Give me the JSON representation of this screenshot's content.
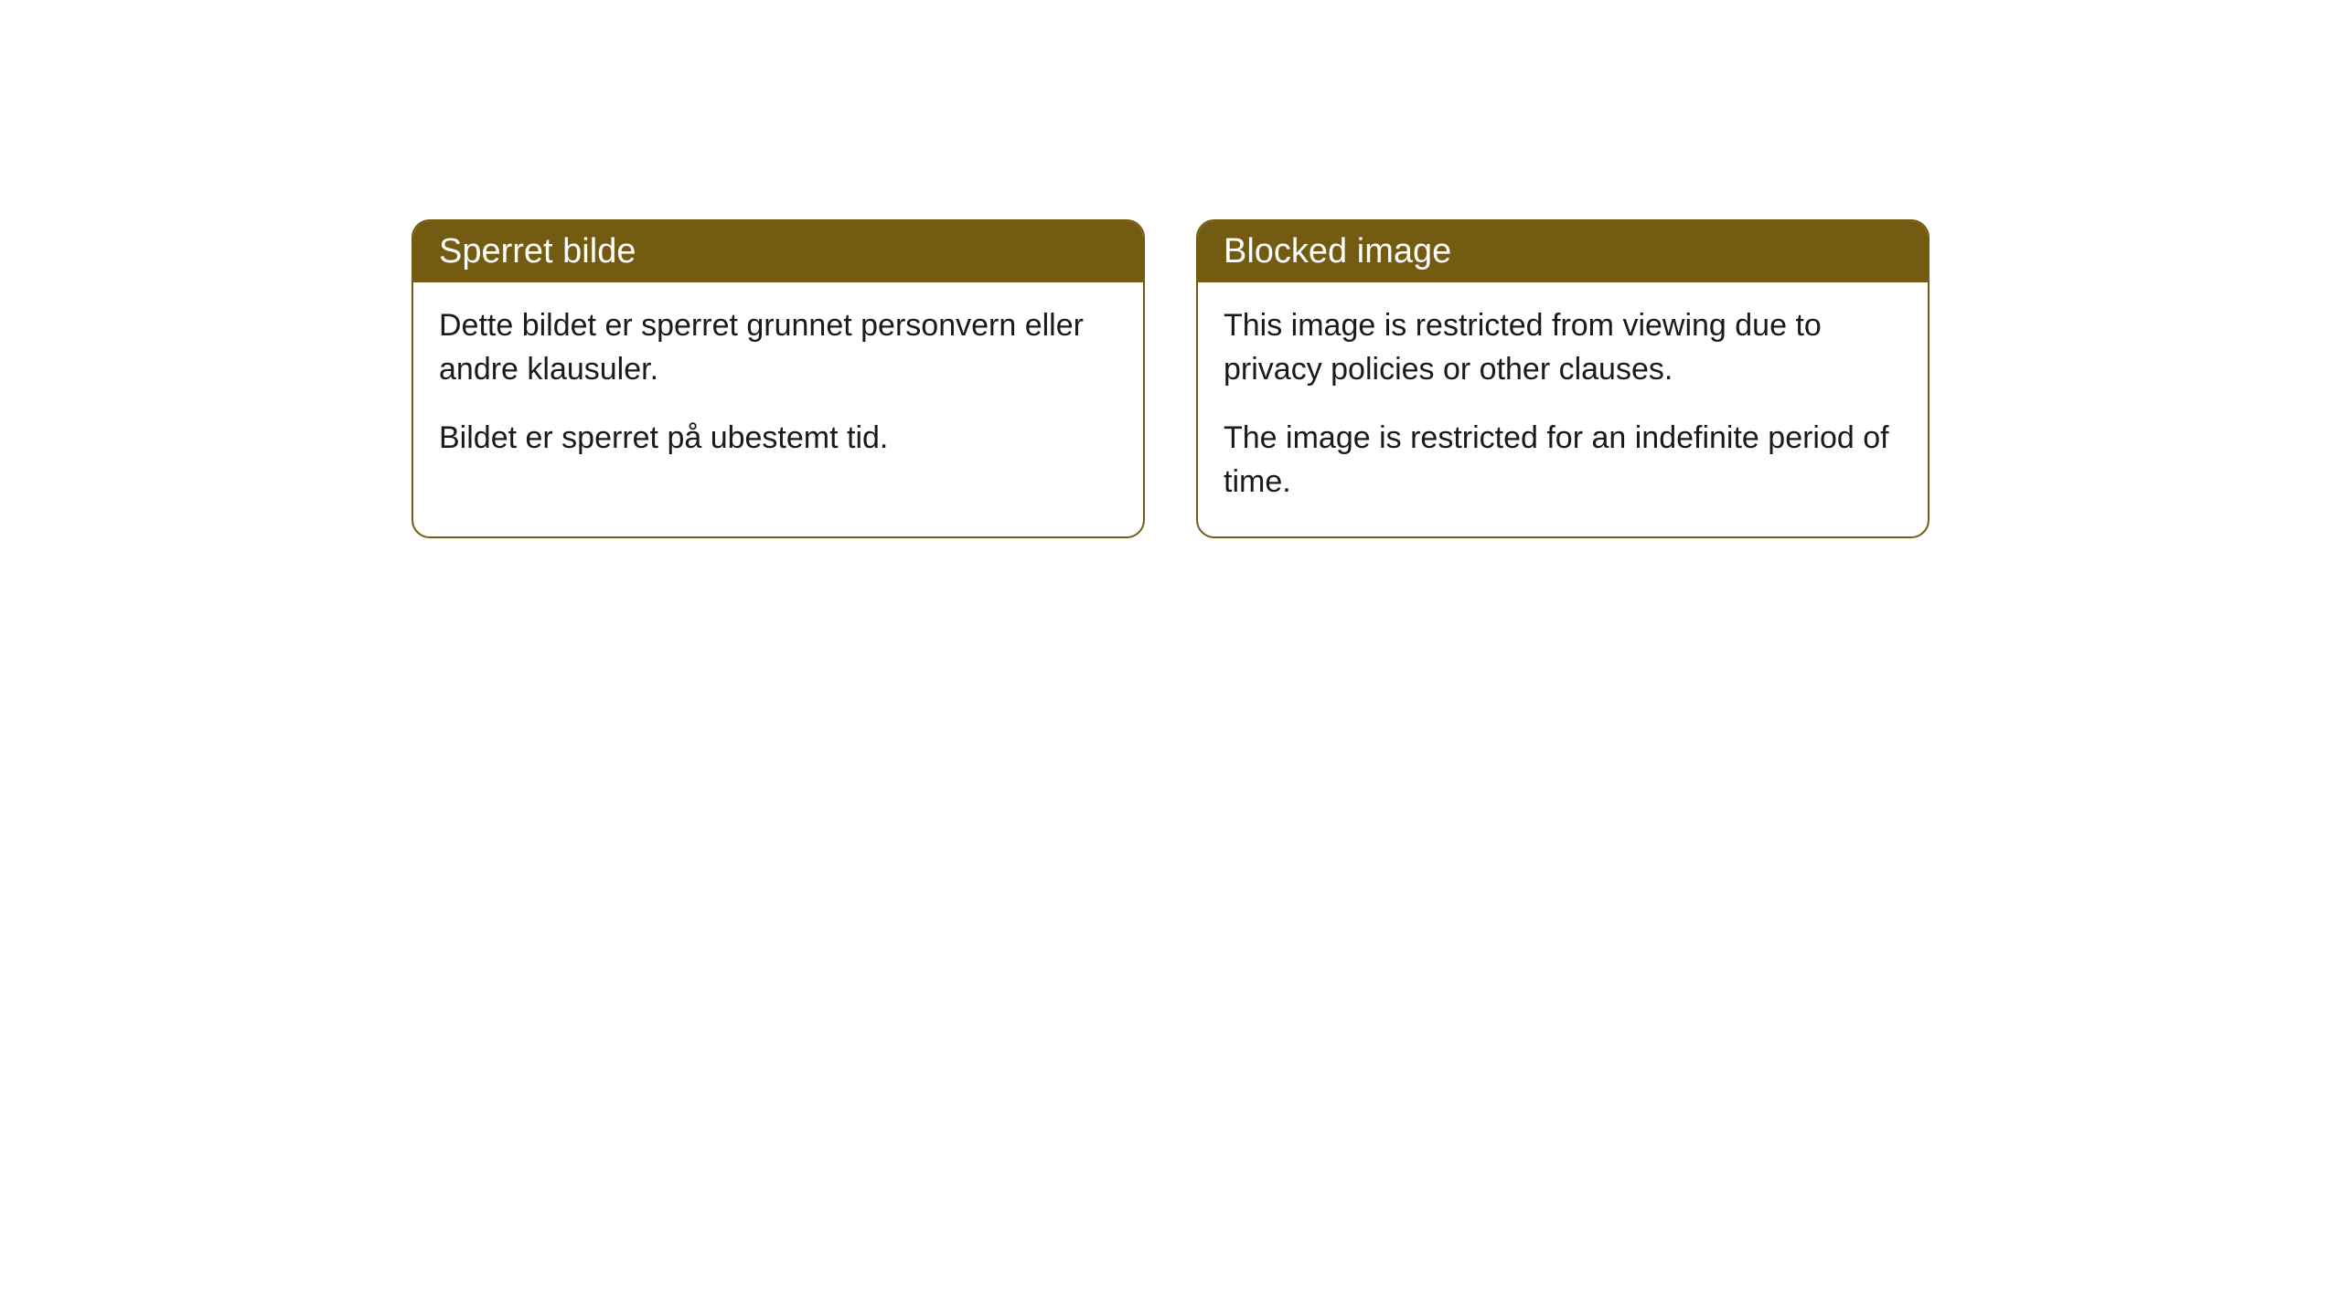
{
  "cards": [
    {
      "title": "Sperret bilde",
      "paragraph1": "Dette bildet er sperret grunnet personvern eller andre klausuler.",
      "paragraph2": "Bildet er sperret på ubestemt tid."
    },
    {
      "title": "Blocked image",
      "paragraph1": "This image is restricted from viewing due to privacy policies or other clauses.",
      "paragraph2": "The image is restricted for an indefinite period of time."
    }
  ],
  "styling": {
    "header_background_color": "#735b11",
    "header_text_color": "#ffffff",
    "card_border_color": "#735b11",
    "card_background_color": "#ffffff",
    "body_text_color": "#1a1a1a",
    "page_background_color": "#ffffff",
    "border_radius": 20,
    "header_font_size": 38,
    "body_font_size": 34
  }
}
